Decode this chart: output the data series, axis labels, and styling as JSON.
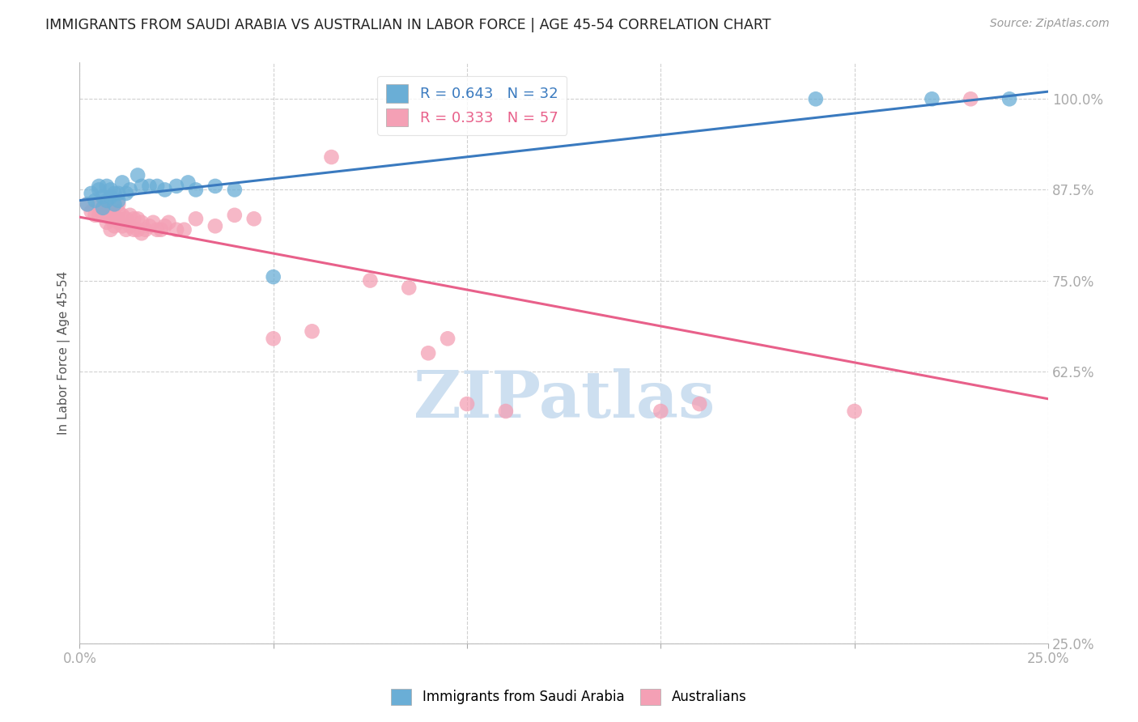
{
  "title": "IMMIGRANTS FROM SAUDI ARABIA VS AUSTRALIAN IN LABOR FORCE | AGE 45-54 CORRELATION CHART",
  "source": "Source: ZipAtlas.com",
  "ylabel": "In Labor Force | Age 45-54",
  "xlim": [
    0.0,
    0.25
  ],
  "ylim": [
    0.25,
    1.05
  ],
  "xticks": [
    0.0,
    0.05,
    0.1,
    0.15,
    0.2,
    0.25
  ],
  "xticklabels": [
    "0.0%",
    "",
    "",
    "",
    "",
    "25.0%"
  ],
  "yticks": [
    0.25,
    0.625,
    0.75,
    0.875,
    1.0
  ],
  "yticklabels": [
    "25.0%",
    "62.5%",
    "75.0%",
    "87.5%",
    "100.0%"
  ],
  "blue_R": 0.643,
  "blue_N": 32,
  "pink_R": 0.333,
  "pink_N": 57,
  "blue_color": "#6aaed6",
  "pink_color": "#f4a0b5",
  "blue_line_color": "#3a7abf",
  "pink_line_color": "#e8608a",
  "watermark": "ZIPatlas",
  "watermark_color": "#cddff0",
  "blue_x": [
    0.002,
    0.003,
    0.004,
    0.005,
    0.005,
    0.006,
    0.006,
    0.007,
    0.007,
    0.008,
    0.008,
    0.009,
    0.009,
    0.01,
    0.01,
    0.011,
    0.012,
    0.013,
    0.015,
    0.016,
    0.018,
    0.02,
    0.022,
    0.025,
    0.028,
    0.03,
    0.035,
    0.04,
    0.05,
    0.19,
    0.22,
    0.24
  ],
  "blue_y": [
    0.855,
    0.87,
    0.86,
    0.875,
    0.88,
    0.85,
    0.865,
    0.86,
    0.88,
    0.865,
    0.875,
    0.855,
    0.87,
    0.86,
    0.87,
    0.885,
    0.87,
    0.875,
    0.895,
    0.88,
    0.88,
    0.88,
    0.875,
    0.88,
    0.885,
    0.875,
    0.88,
    0.875,
    0.755,
    1.0,
    1.0,
    1.0
  ],
  "pink_x": [
    0.002,
    0.003,
    0.004,
    0.005,
    0.005,
    0.006,
    0.006,
    0.007,
    0.007,
    0.007,
    0.008,
    0.008,
    0.008,
    0.009,
    0.009,
    0.01,
    0.01,
    0.01,
    0.01,
    0.011,
    0.011,
    0.012,
    0.012,
    0.013,
    0.013,
    0.014,
    0.014,
    0.015,
    0.015,
    0.016,
    0.016,
    0.017,
    0.018,
    0.019,
    0.02,
    0.021,
    0.022,
    0.023,
    0.025,
    0.027,
    0.03,
    0.035,
    0.04,
    0.045,
    0.05,
    0.06,
    0.065,
    0.075,
    0.085,
    0.09,
    0.095,
    0.1,
    0.11,
    0.15,
    0.16,
    0.2,
    0.23
  ],
  "pink_y": [
    0.855,
    0.845,
    0.84,
    0.84,
    0.855,
    0.84,
    0.85,
    0.83,
    0.845,
    0.855,
    0.82,
    0.835,
    0.845,
    0.825,
    0.84,
    0.83,
    0.835,
    0.845,
    0.855,
    0.825,
    0.84,
    0.82,
    0.835,
    0.825,
    0.84,
    0.82,
    0.835,
    0.82,
    0.835,
    0.815,
    0.83,
    0.82,
    0.825,
    0.83,
    0.82,
    0.82,
    0.825,
    0.83,
    0.82,
    0.82,
    0.835,
    0.825,
    0.84,
    0.835,
    0.67,
    0.68,
    0.92,
    0.75,
    0.74,
    0.65,
    0.67,
    0.58,
    0.57,
    0.57,
    0.58,
    0.57,
    1.0
  ]
}
